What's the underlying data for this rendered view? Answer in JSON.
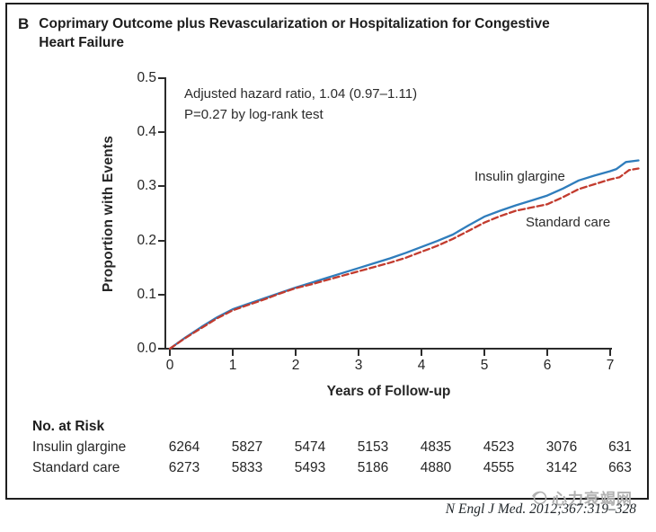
{
  "panel": {
    "letter": "B",
    "title_line1": "Coprimary Outcome plus Revascularization or Hospitalization for Congestive",
    "title_line2": "Heart Failure"
  },
  "annotation": {
    "line1": "Adjusted hazard ratio, 1.04 (0.97–1.11)",
    "line2": "P=0.27 by log-rank test"
  },
  "chart_data": {
    "type": "line",
    "title": "Coprimary Outcome plus Revascularization or Hospitalization for Congestive Heart Failure",
    "xlabel": "Years of Follow-up",
    "ylabel": "Proportion with Events",
    "xlim": [
      0,
      7.5
    ],
    "ylim": [
      0.0,
      0.5
    ],
    "grid": false,
    "x_ticks": [
      "0",
      "1",
      "2",
      "3",
      "4",
      "5",
      "6",
      "7"
    ],
    "y_ticks_top_to_bottom": [
      "0.5",
      "0.4",
      "0.3",
      "0.2",
      "0.1",
      "0.0"
    ],
    "series": [
      {
        "name": "Insulin glargine",
        "color": "#2f7dbc",
        "style": "solid",
        "x": [
          0,
          0.25,
          0.5,
          0.75,
          1.0,
          1.25,
          1.5,
          1.75,
          2.0,
          2.25,
          2.5,
          2.75,
          3.0,
          3.25,
          3.5,
          3.75,
          4.0,
          4.25,
          4.5,
          4.75,
          5.0,
          5.25,
          5.5,
          5.75,
          6.0,
          6.25,
          6.5,
          6.75,
          7.0,
          7.1,
          7.25,
          7.45
        ],
        "y": [
          0,
          0.021,
          0.04,
          0.058,
          0.073,
          0.083,
          0.093,
          0.103,
          0.113,
          0.122,
          0.131,
          0.14,
          0.149,
          0.158,
          0.167,
          0.177,
          0.188,
          0.199,
          0.211,
          0.228,
          0.244,
          0.255,
          0.265,
          0.274,
          0.283,
          0.296,
          0.311,
          0.32,
          0.328,
          0.332,
          0.345,
          0.348
        ]
      },
      {
        "name": "Standard care",
        "color": "#c23b2e",
        "style": "dashed",
        "x": [
          0,
          0.25,
          0.5,
          0.75,
          1.0,
          1.25,
          1.5,
          1.75,
          2.0,
          2.25,
          2.5,
          2.75,
          3.0,
          3.25,
          3.5,
          3.75,
          4.0,
          4.25,
          4.5,
          4.75,
          5.0,
          5.25,
          5.5,
          5.75,
          6.0,
          6.25,
          6.5,
          6.75,
          7.0,
          7.15,
          7.3,
          7.45
        ],
        "y": [
          0,
          0.02,
          0.038,
          0.056,
          0.071,
          0.081,
          0.091,
          0.102,
          0.112,
          0.119,
          0.127,
          0.135,
          0.143,
          0.151,
          0.159,
          0.168,
          0.179,
          0.19,
          0.203,
          0.218,
          0.233,
          0.245,
          0.255,
          0.261,
          0.267,
          0.28,
          0.295,
          0.304,
          0.313,
          0.317,
          0.33,
          0.333
        ]
      }
    ],
    "series_labels_on_plot": [
      "Insulin glargine",
      "Standard care"
    ]
  },
  "risk_table": {
    "heading": "No. at Risk",
    "rows": [
      {
        "label": "Insulin glargine",
        "values": [
          "6264",
          "5827",
          "5474",
          "5153",
          "4835",
          "4523",
          "3076",
          "631"
        ]
      },
      {
        "label": "Standard care",
        "values": [
          "6273",
          "5833",
          "5493",
          "5186",
          "4880",
          "4555",
          "3142",
          "663"
        ]
      }
    ]
  },
  "footer": {
    "watermark": "心力衰竭网",
    "citation": "N Engl J Med. 2012;367:319–328"
  },
  "colors": {
    "insulin_glargine": "#2f7dbc",
    "standard_care": "#c23b2e",
    "axis": "#2b2b2b",
    "border": "#1f1f1f",
    "watermark_gray": "#b1b1b1"
  }
}
